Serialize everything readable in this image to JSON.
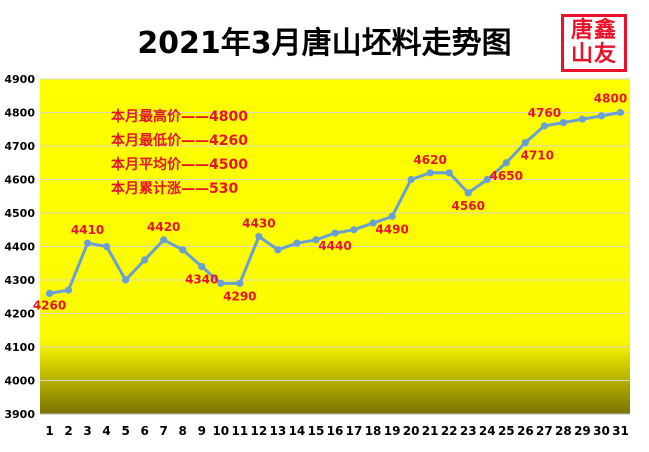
{
  "title": "2021年3月唐山坯料走势图",
  "logo": {
    "line1": "唐鑫",
    "line2": "山友"
  },
  "colors": {
    "line": "#6a9fd4",
    "label": "#e8132b",
    "bg_top": "#ffff00",
    "bg_bottom": "#7a7300"
  },
  "chart_data": {
    "type": "line",
    "title": "2021年3月唐山坯料走势图",
    "xlabel": "",
    "ylabel": "",
    "ylim": [
      3900,
      4900
    ],
    "yticks": [
      3900,
      4000,
      4100,
      4200,
      4300,
      4400,
      4500,
      4600,
      4700,
      4800,
      4900
    ],
    "categories": [
      "1",
      "2",
      "3",
      "4",
      "5",
      "6",
      "7",
      "8",
      "9",
      "10",
      "11",
      "12",
      "13",
      "14",
      "15",
      "16",
      "17",
      "18",
      "19",
      "20",
      "21",
      "22",
      "23",
      "24",
      "25",
      "26",
      "27",
      "28",
      "29",
      "30",
      "31"
    ],
    "values": [
      4260,
      4270,
      4410,
      4400,
      4300,
      4360,
      4420,
      4390,
      4340,
      4290,
      4290,
      4430,
      4390,
      4410,
      4420,
      4440,
      4450,
      4470,
      4490,
      4600,
      4620,
      4620,
      4560,
      4600,
      4650,
      4710,
      4760,
      4770,
      4780,
      4790,
      4800
    ],
    "data_labels": [
      {
        "index": 0,
        "text": "4260"
      },
      {
        "index": 2,
        "text": "4410"
      },
      {
        "index": 6,
        "text": "4420"
      },
      {
        "index": 8,
        "text": "4340"
      },
      {
        "index": 10,
        "text": "4290"
      },
      {
        "index": 11,
        "text": "4430"
      },
      {
        "index": 15,
        "text": "4440"
      },
      {
        "index": 18,
        "text": "4490"
      },
      {
        "index": 20,
        "text": "4620"
      },
      {
        "index": 22,
        "text": "4560"
      },
      {
        "index": 24,
        "text": "4650"
      },
      {
        "index": 25,
        "text": "4710"
      },
      {
        "index": 26,
        "text": "4760"
      },
      {
        "index": 30,
        "text": "4800"
      }
    ],
    "annotations": [
      "本月最高价——4800",
      "本月最低价——4260",
      "本月平均价——4500",
      "本月累计涨——530"
    ],
    "grid": true,
    "legend": "none"
  }
}
